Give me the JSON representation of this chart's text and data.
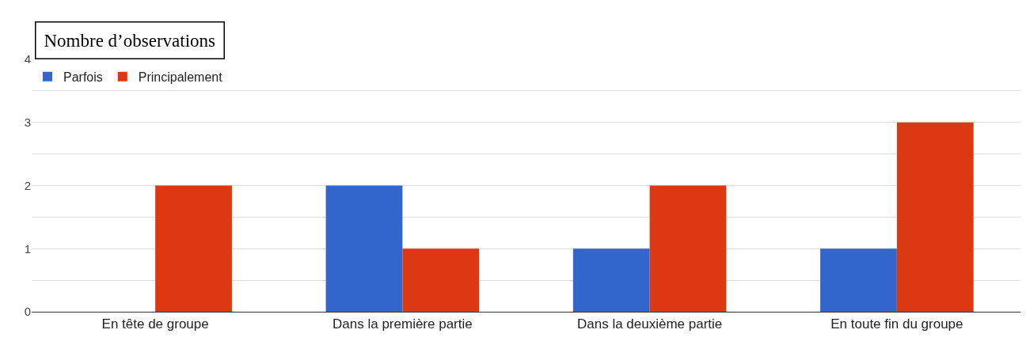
{
  "chart_data": {
    "type": "bar",
    "title": "Nombre d’observations",
    "categories": [
      "En tête de groupe",
      "Dans la première partie",
      "Dans la deuxième partie",
      "En toute fin du groupe"
    ],
    "series": [
      {
        "name": "Parfois",
        "color": "#3366cc",
        "values": [
          0,
          2,
          1,
          1
        ]
      },
      {
        "name": "Principalement",
        "color": "#dc3912",
        "values": [
          2,
          1,
          2,
          3
        ]
      }
    ],
    "ylim": [
      0,
      4
    ],
    "yticks": [
      0,
      {
        "value": 0.5,
        "label": null
      },
      1,
      {
        "value": 1.5,
        "label": null
      },
      2,
      {
        "value": 2.5,
        "label": null
      },
      3,
      {
        "value": 3.5,
        "label": null
      },
      4
    ],
    "grid": "y",
    "legend": "top left"
  }
}
